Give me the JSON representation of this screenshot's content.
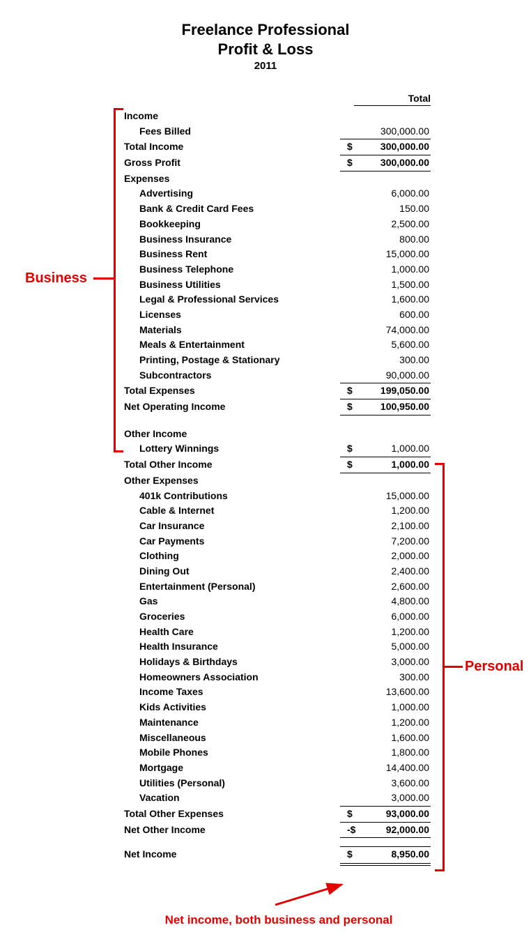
{
  "colors": {
    "text": "#000000",
    "annotation": "#e20000",
    "background": "#ffffff",
    "rule": "#000000"
  },
  "typography": {
    "title_fontsize": 22,
    "subtitle_fontsize": 15,
    "body_fontsize": 14,
    "annotation_fontsize": 20,
    "footer_annotation_fontsize": 17,
    "font_family": "Arial"
  },
  "header": {
    "title1": "Freelance Professional",
    "title2": "Profit & Loss",
    "year": "2011"
  },
  "col_header": "Total",
  "business": {
    "income_label": "Income",
    "income_items": [
      {
        "label": "Fees Billed",
        "value": "300,000.00"
      }
    ],
    "total_income": {
      "label": "Total Income",
      "sym": "$",
      "value": "300,000.00"
    },
    "gross_profit": {
      "label": "Gross Profit",
      "sym": "$",
      "value": "300,000.00"
    },
    "expenses_label": "Expenses",
    "expense_items": [
      {
        "label": "Advertising",
        "value": "6,000.00"
      },
      {
        "label": "Bank & Credit Card Fees",
        "value": "150.00"
      },
      {
        "label": "Bookkeeping",
        "value": "2,500.00"
      },
      {
        "label": "Business Insurance",
        "value": "800.00"
      },
      {
        "label": "Business Rent",
        "value": "15,000.00"
      },
      {
        "label": "Business Telephone",
        "value": "1,000.00"
      },
      {
        "label": "Business Utilities",
        "value": "1,500.00"
      },
      {
        "label": "Legal & Professional Services",
        "value": "1,600.00"
      },
      {
        "label": "Licenses",
        "value": "600.00"
      },
      {
        "label": "Materials",
        "value": "74,000.00"
      },
      {
        "label": "Meals & Entertainment",
        "value": "5,600.00"
      },
      {
        "label": "Printing, Postage & Stationary",
        "value": "300.00"
      },
      {
        "label": "Subcontractors",
        "value": "90,000.00"
      }
    ],
    "total_expenses": {
      "label": "Total Expenses",
      "sym": "$",
      "value": "199,050.00"
    },
    "net_operating": {
      "label": "Net Operating Income",
      "sym": "$",
      "value": "100,950.00"
    }
  },
  "personal": {
    "other_income_label": "Other Income",
    "other_income_items": [
      {
        "label": "Lottery Winnings",
        "sym": "$",
        "value": "1,000.00"
      }
    ],
    "total_other_income": {
      "label": "Total Other Income",
      "sym": "$",
      "value": "1,000.00"
    },
    "other_expenses_label": "Other Expenses",
    "other_expense_items": [
      {
        "label": "401k Contributions",
        "value": "15,000.00"
      },
      {
        "label": "Cable & Internet",
        "value": "1,200.00"
      },
      {
        "label": "Car Insurance",
        "value": "2,100.00"
      },
      {
        "label": "Car Payments",
        "value": "7,200.00"
      },
      {
        "label": "Clothing",
        "value": "2,000.00"
      },
      {
        "label": "Dining Out",
        "value": "2,400.00"
      },
      {
        "label": "Entertainment (Personal)",
        "value": "2,600.00"
      },
      {
        "label": "Gas",
        "value": "4,800.00"
      },
      {
        "label": "Groceries",
        "value": "6,000.00"
      },
      {
        "label": "Health Care",
        "value": "1,200.00"
      },
      {
        "label": "Health Insurance",
        "value": "5,000.00"
      },
      {
        "label": "Holidays & Birthdays",
        "value": "3,000.00"
      },
      {
        "label": "Homeowners Association",
        "value": "300.00"
      },
      {
        "label": "Income Taxes",
        "value": "13,600.00"
      },
      {
        "label": "Kids Activities",
        "value": "1,000.00"
      },
      {
        "label": "Maintenance",
        "value": "1,200.00"
      },
      {
        "label": "Miscellaneous",
        "value": "1,600.00"
      },
      {
        "label": "Mobile Phones",
        "value": "1,800.00"
      },
      {
        "label": "Mortgage",
        "value": "14,400.00"
      },
      {
        "label": "Utilities (Personal)",
        "value": "3,600.00"
      },
      {
        "label": "Vacation",
        "value": "3,000.00"
      }
    ],
    "total_other_expenses": {
      "label": "Total Other Expenses",
      "sym": "$",
      "value": "93,000.00"
    },
    "net_other_income": {
      "label": "Net Other Income",
      "sym": "-$",
      "value": "92,000.00"
    }
  },
  "net_income": {
    "label": "Net Income",
    "sym": "$",
    "value": "8,950.00"
  },
  "annotations": {
    "business_label": "Business",
    "personal_label": "Personal",
    "footer": "Net income, both business and personal"
  }
}
